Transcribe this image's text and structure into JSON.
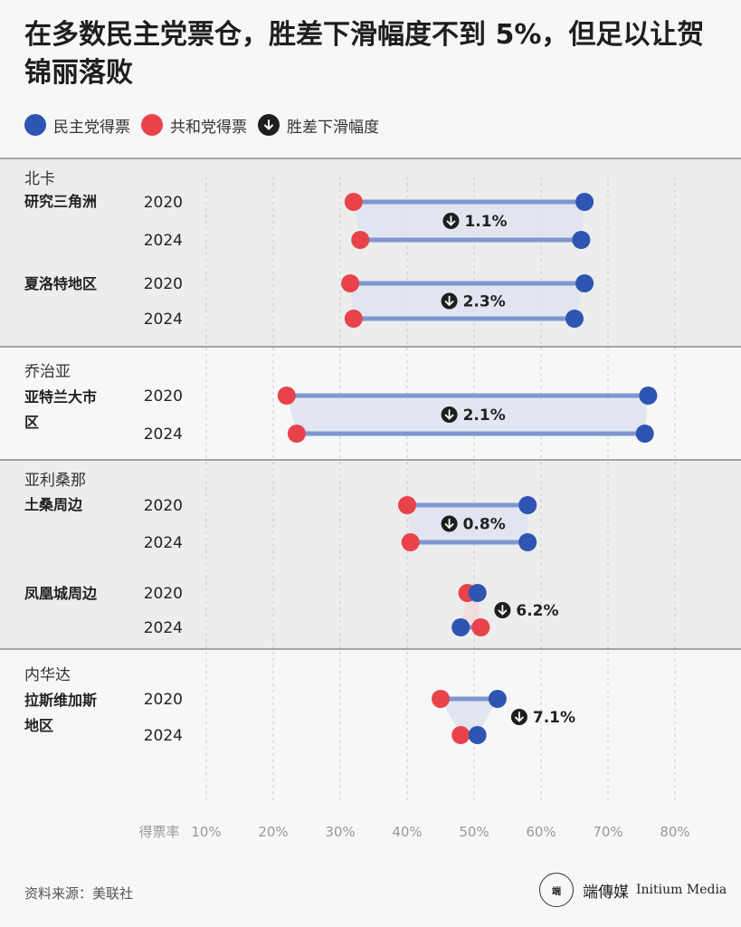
{
  "title": "在多数民主党票仓，胜差下滑幅度不到 5%，但足以让贺锦丽落败",
  "legend": {
    "dem": "民主党得票",
    "rep": "共和党得票",
    "drop": "胜差下滑幅度"
  },
  "colors": {
    "dem": "#2d55b1",
    "rep": "#e8434a",
    "drop_icon": "#1e1e1e",
    "band": "#f0f0f0"
  },
  "chart_data": {
    "type": "dumbbell",
    "xlabel": "得票率",
    "xticks": [
      "10%",
      "20%",
      "30%",
      "40%",
      "50%",
      "60%",
      "70%",
      "80%"
    ],
    "xlim": [
      10,
      80
    ],
    "states": [
      {
        "state": "北卡",
        "shaded": true,
        "areas": [
          {
            "name": "研究三角洲",
            "drop": "1.1%",
            "years": [
              {
                "year": "2020",
                "dem": 66.5,
                "rep": 32.0
              },
              {
                "year": "2024",
                "dem": 66.0,
                "rep": 33.0
              }
            ]
          },
          {
            "name": "夏洛特地区",
            "drop": "2.3%",
            "years": [
              {
                "year": "2020",
                "dem": 66.5,
                "rep": 31.5
              },
              {
                "year": "2024",
                "dem": 65.0,
                "rep": 32.0
              }
            ]
          }
        ]
      },
      {
        "state": "乔治亚",
        "shaded": false,
        "areas": [
          {
            "name": "亚特兰大市区",
            "drop": "2.1%",
            "years": [
              {
                "year": "2020",
                "dem": 76.0,
                "rep": 22.0
              },
              {
                "year": "2024",
                "dem": 75.5,
                "rep": 23.5
              }
            ]
          }
        ]
      },
      {
        "state": "亚利桑那",
        "shaded": true,
        "areas": [
          {
            "name": "土桑周边",
            "drop": "0.8%",
            "years": [
              {
                "year": "2020",
                "dem": 58.0,
                "rep": 40.0
              },
              {
                "year": "2024",
                "dem": 58.0,
                "rep": 40.5
              }
            ]
          },
          {
            "name": "凤凰城周边",
            "drop": "6.2%",
            "years": [
              {
                "year": "2020",
                "dem": 50.5,
                "rep": 49.0
              },
              {
                "year": "2024",
                "dem": 48.0,
                "rep": 51.0
              }
            ]
          }
        ]
      },
      {
        "state": "内华达",
        "shaded": false,
        "areas": [
          {
            "name": "拉斯维加斯地区",
            "drop": "7.1%",
            "years": [
              {
                "year": "2020",
                "dem": 53.5,
                "rep": 45.0
              },
              {
                "year": "2024",
                "dem": 50.5,
                "rep": 48.0
              }
            ]
          }
        ]
      }
    ]
  },
  "source": "资料来源：美联社",
  "brand": {
    "logo_text": "端",
    "cn": "端傳媒",
    "en": "Initium Media"
  }
}
